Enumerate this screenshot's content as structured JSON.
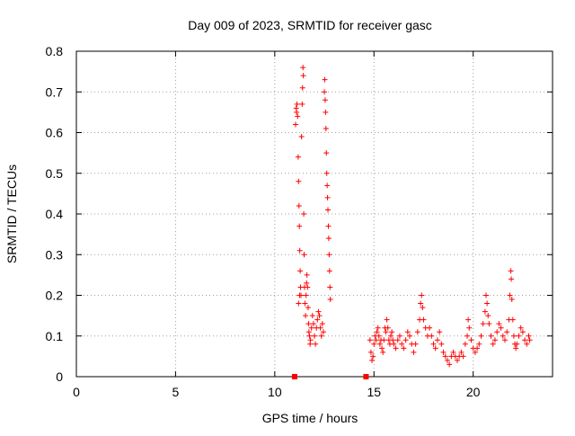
{
  "chart_data": {
    "type": "scatter",
    "title": "Day 009 of 2023, SRMTID for receiver gasc",
    "xlabel": "GPS time / hours",
    "ylabel": "SRMTID / TECUs",
    "xlim": [
      0,
      24
    ],
    "ylim": [
      0,
      0.8
    ],
    "xticks": [
      0,
      5,
      10,
      15,
      20
    ],
    "xtick_labels": [
      "0",
      "5",
      "10",
      "15",
      "20"
    ],
    "yticks": [
      0,
      0.1,
      0.2,
      0.3,
      0.4,
      0.5,
      0.6,
      0.7,
      0.8
    ],
    "ytick_labels": [
      "0",
      "0.1",
      "0.2",
      "0.3",
      "0.4",
      "0.5",
      "0.6",
      "0.7",
      "0.8"
    ],
    "grid": true,
    "marker": "plus",
    "marker_color": "#ff0000",
    "square_markers": [
      {
        "x": 11.0,
        "y": 0.0
      },
      {
        "x": 14.6,
        "y": 0.0
      }
    ],
    "series": [
      {
        "name": "SRMTID",
        "points": [
          [
            11.05,
            0.62
          ],
          [
            11.08,
            0.66
          ],
          [
            11.1,
            0.65
          ],
          [
            11.12,
            0.67
          ],
          [
            11.15,
            0.64
          ],
          [
            11.18,
            0.54
          ],
          [
            11.2,
            0.48
          ],
          [
            11.22,
            0.42
          ],
          [
            11.24,
            0.37
          ],
          [
            11.26,
            0.31
          ],
          [
            11.28,
            0.26
          ],
          [
            11.3,
            0.22
          ],
          [
            11.32,
            0.2
          ],
          [
            11.2,
            0.18
          ],
          [
            11.25,
            0.2
          ],
          [
            11.35,
            0.59
          ],
          [
            11.38,
            0.67
          ],
          [
            11.4,
            0.71
          ],
          [
            11.42,
            0.76
          ],
          [
            11.44,
            0.74
          ],
          [
            11.46,
            0.4
          ],
          [
            11.48,
            0.3
          ],
          [
            11.5,
            0.22
          ],
          [
            11.52,
            0.18
          ],
          [
            11.55,
            0.15
          ],
          [
            11.58,
            0.2
          ],
          [
            11.6,
            0.23
          ],
          [
            11.62,
            0.25
          ],
          [
            11.65,
            0.22
          ],
          [
            11.68,
            0.17
          ],
          [
            11.7,
            0.13
          ],
          [
            11.72,
            0.11
          ],
          [
            11.75,
            0.1
          ],
          [
            11.78,
            0.08
          ],
          [
            11.8,
            0.09
          ],
          [
            11.85,
            0.12
          ],
          [
            11.9,
            0.15
          ],
          [
            11.95,
            0.13
          ],
          [
            12.0,
            0.1
          ],
          [
            12.05,
            0.08
          ],
          [
            12.1,
            0.12
          ],
          [
            12.15,
            0.14
          ],
          [
            12.2,
            0.16
          ],
          [
            12.25,
            0.15
          ],
          [
            12.3,
            0.12
          ],
          [
            12.35,
            0.1
          ],
          [
            12.4,
            0.13
          ],
          [
            12.45,
            0.11
          ],
          [
            12.5,
            0.7
          ],
          [
            12.52,
            0.73
          ],
          [
            12.54,
            0.68
          ],
          [
            12.56,
            0.65
          ],
          [
            12.58,
            0.61
          ],
          [
            12.6,
            0.55
          ],
          [
            12.62,
            0.5
          ],
          [
            12.64,
            0.47
          ],
          [
            12.66,
            0.44
          ],
          [
            12.68,
            0.41
          ],
          [
            12.7,
            0.37
          ],
          [
            12.72,
            0.34
          ],
          [
            12.74,
            0.3
          ],
          [
            12.76,
            0.26
          ],
          [
            12.78,
            0.22
          ],
          [
            12.8,
            0.19
          ],
          [
            14.8,
            0.09
          ],
          [
            14.85,
            0.06
          ],
          [
            14.9,
            0.04
          ],
          [
            14.95,
            0.05
          ],
          [
            15.0,
            0.08
          ],
          [
            15.05,
            0.1
          ],
          [
            15.1,
            0.09
          ],
          [
            15.15,
            0.11
          ],
          [
            15.2,
            0.12
          ],
          [
            15.25,
            0.1
          ],
          [
            15.3,
            0.08
          ],
          [
            15.35,
            0.09
          ],
          [
            15.4,
            0.07
          ],
          [
            15.45,
            0.06
          ],
          [
            15.5,
            0.09
          ],
          [
            15.55,
            0.12
          ],
          [
            15.6,
            0.11
          ],
          [
            15.65,
            0.14
          ],
          [
            15.7,
            0.12
          ],
          [
            15.75,
            0.09
          ],
          [
            15.8,
            0.08
          ],
          [
            15.85,
            0.1
          ],
          [
            15.9,
            0.11
          ],
          [
            15.95,
            0.09
          ],
          [
            16.0,
            0.08
          ],
          [
            16.1,
            0.07
          ],
          [
            16.2,
            0.09
          ],
          [
            16.3,
            0.1
          ],
          [
            16.4,
            0.08
          ],
          [
            16.5,
            0.07
          ],
          [
            16.6,
            0.09
          ],
          [
            16.7,
            0.11
          ],
          [
            16.8,
            0.1
          ],
          [
            16.9,
            0.08
          ],
          [
            17.0,
            0.06
          ],
          [
            17.1,
            0.08
          ],
          [
            17.2,
            0.11
          ],
          [
            17.3,
            0.14
          ],
          [
            17.35,
            0.18
          ],
          [
            17.4,
            0.2
          ],
          [
            17.45,
            0.17
          ],
          [
            17.5,
            0.14
          ],
          [
            17.6,
            0.12
          ],
          [
            17.7,
            0.1
          ],
          [
            17.8,
            0.12
          ],
          [
            17.9,
            0.1
          ],
          [
            18.0,
            0.08
          ],
          [
            18.1,
            0.07
          ],
          [
            18.2,
            0.09
          ],
          [
            18.3,
            0.11
          ],
          [
            18.4,
            0.08
          ],
          [
            18.5,
            0.06
          ],
          [
            18.6,
            0.05
          ],
          [
            18.7,
            0.04
          ],
          [
            18.8,
            0.03
          ],
          [
            18.9,
            0.05
          ],
          [
            19.0,
            0.06
          ],
          [
            19.1,
            0.05
          ],
          [
            19.2,
            0.04
          ],
          [
            19.3,
            0.05
          ],
          [
            19.4,
            0.06
          ],
          [
            19.5,
            0.05
          ],
          [
            19.6,
            0.08
          ],
          [
            19.7,
            0.1
          ],
          [
            19.75,
            0.14
          ],
          [
            19.8,
            0.12
          ],
          [
            19.9,
            0.09
          ],
          [
            20.0,
            0.07
          ],
          [
            20.1,
            0.06
          ],
          [
            20.2,
            0.07
          ],
          [
            20.3,
            0.08
          ],
          [
            20.4,
            0.1
          ],
          [
            20.5,
            0.13
          ],
          [
            20.6,
            0.16
          ],
          [
            20.65,
            0.2
          ],
          [
            20.7,
            0.18
          ],
          [
            20.75,
            0.15
          ],
          [
            20.8,
            0.13
          ],
          [
            20.9,
            0.1
          ],
          [
            21.0,
            0.08
          ],
          [
            21.1,
            0.09
          ],
          [
            21.2,
            0.11
          ],
          [
            21.3,
            0.13
          ],
          [
            21.4,
            0.12
          ],
          [
            21.5,
            0.1
          ],
          [
            21.6,
            0.09
          ],
          [
            21.7,
            0.11
          ],
          [
            21.8,
            0.14
          ],
          [
            21.85,
            0.2
          ],
          [
            21.9,
            0.26
          ],
          [
            21.92,
            0.24
          ],
          [
            21.95,
            0.19
          ],
          [
            22.0,
            0.14
          ],
          [
            22.05,
            0.1
          ],
          [
            22.1,
            0.08
          ],
          [
            22.15,
            0.07
          ],
          [
            22.2,
            0.08
          ],
          [
            22.3,
            0.1
          ],
          [
            22.4,
            0.12
          ],
          [
            22.5,
            0.11
          ],
          [
            22.6,
            0.09
          ],
          [
            22.7,
            0.08
          ],
          [
            22.8,
            0.1
          ],
          [
            22.85,
            0.09
          ]
        ]
      }
    ]
  }
}
